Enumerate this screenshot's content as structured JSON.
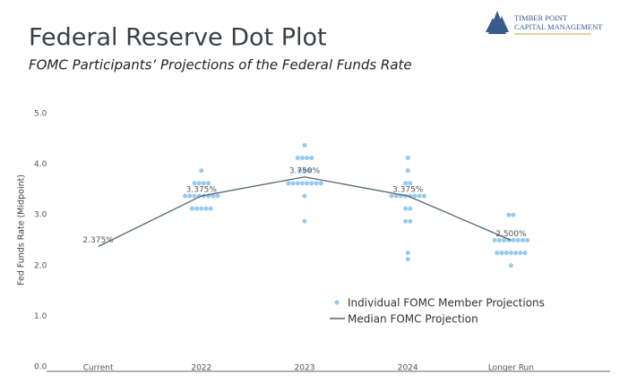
{
  "logo": {
    "line1": "TIMBER POINT",
    "line2": "CAPITAL MANAGEMENT"
  },
  "chart_data": {
    "type": "dot_plot",
    "title": "Federal Reserve Dot Plot",
    "subtitle": "FOMC Participants’ Projections of the Federal Funds Rate",
    "y_label": "Fed Funds Rate (Midpoint)",
    "categories": [
      "Current",
      "2022",
      "2023",
      "2024",
      "Longer Run"
    ],
    "ylim": [
      0,
      5
    ],
    "yticks": [
      {
        "value": 0,
        "label": "0.0"
      },
      {
        "value": 1,
        "label": "1.0"
      },
      {
        "value": 2,
        "label": "2.0"
      },
      {
        "value": 3,
        "label": "3.0"
      },
      {
        "value": 4,
        "label": "4.0"
      },
      {
        "value": 5,
        "label": "5.0"
      }
    ],
    "series": [
      {
        "name": "Individual FOMC Member Projections",
        "color": "#93cbf1",
        "values": [
          [],
          [
            3.875,
            3.625,
            3.625,
            3.625,
            3.625,
            3.375,
            3.375,
            3.375,
            3.375,
            3.375,
            3.375,
            3.375,
            3.375,
            3.125,
            3.125,
            3.125,
            3.125,
            3.125
          ],
          [
            4.375,
            4.125,
            4.125,
            4.125,
            4.125,
            3.875,
            3.875,
            3.875,
            3.625,
            3.625,
            3.625,
            3.625,
            3.625,
            3.625,
            3.625,
            3.625,
            3.375,
            2.875
          ],
          [
            4.125,
            3.875,
            3.625,
            3.625,
            3.375,
            3.375,
            3.375,
            3.375,
            3.375,
            3.375,
            3.375,
            3.375,
            3.125,
            3.125,
            2.875,
            2.875,
            2.25,
            2.125
          ],
          [
            3.0,
            3.0,
            2.5,
            2.5,
            2.5,
            2.5,
            2.5,
            2.5,
            2.5,
            2.5,
            2.25,
            2.25,
            2.25,
            2.25,
            2.25,
            2.25,
            2.25,
            2.0
          ]
        ]
      },
      {
        "name": "Median FOMC Projection",
        "color": "#556372",
        "values": [
          2.375,
          3.375,
          3.75,
          3.375,
          2.5
        ],
        "value_labels": [
          "2.375%",
          "3.375%",
          "3.750%",
          "3.375%",
          "2.500%"
        ]
      }
    ]
  }
}
